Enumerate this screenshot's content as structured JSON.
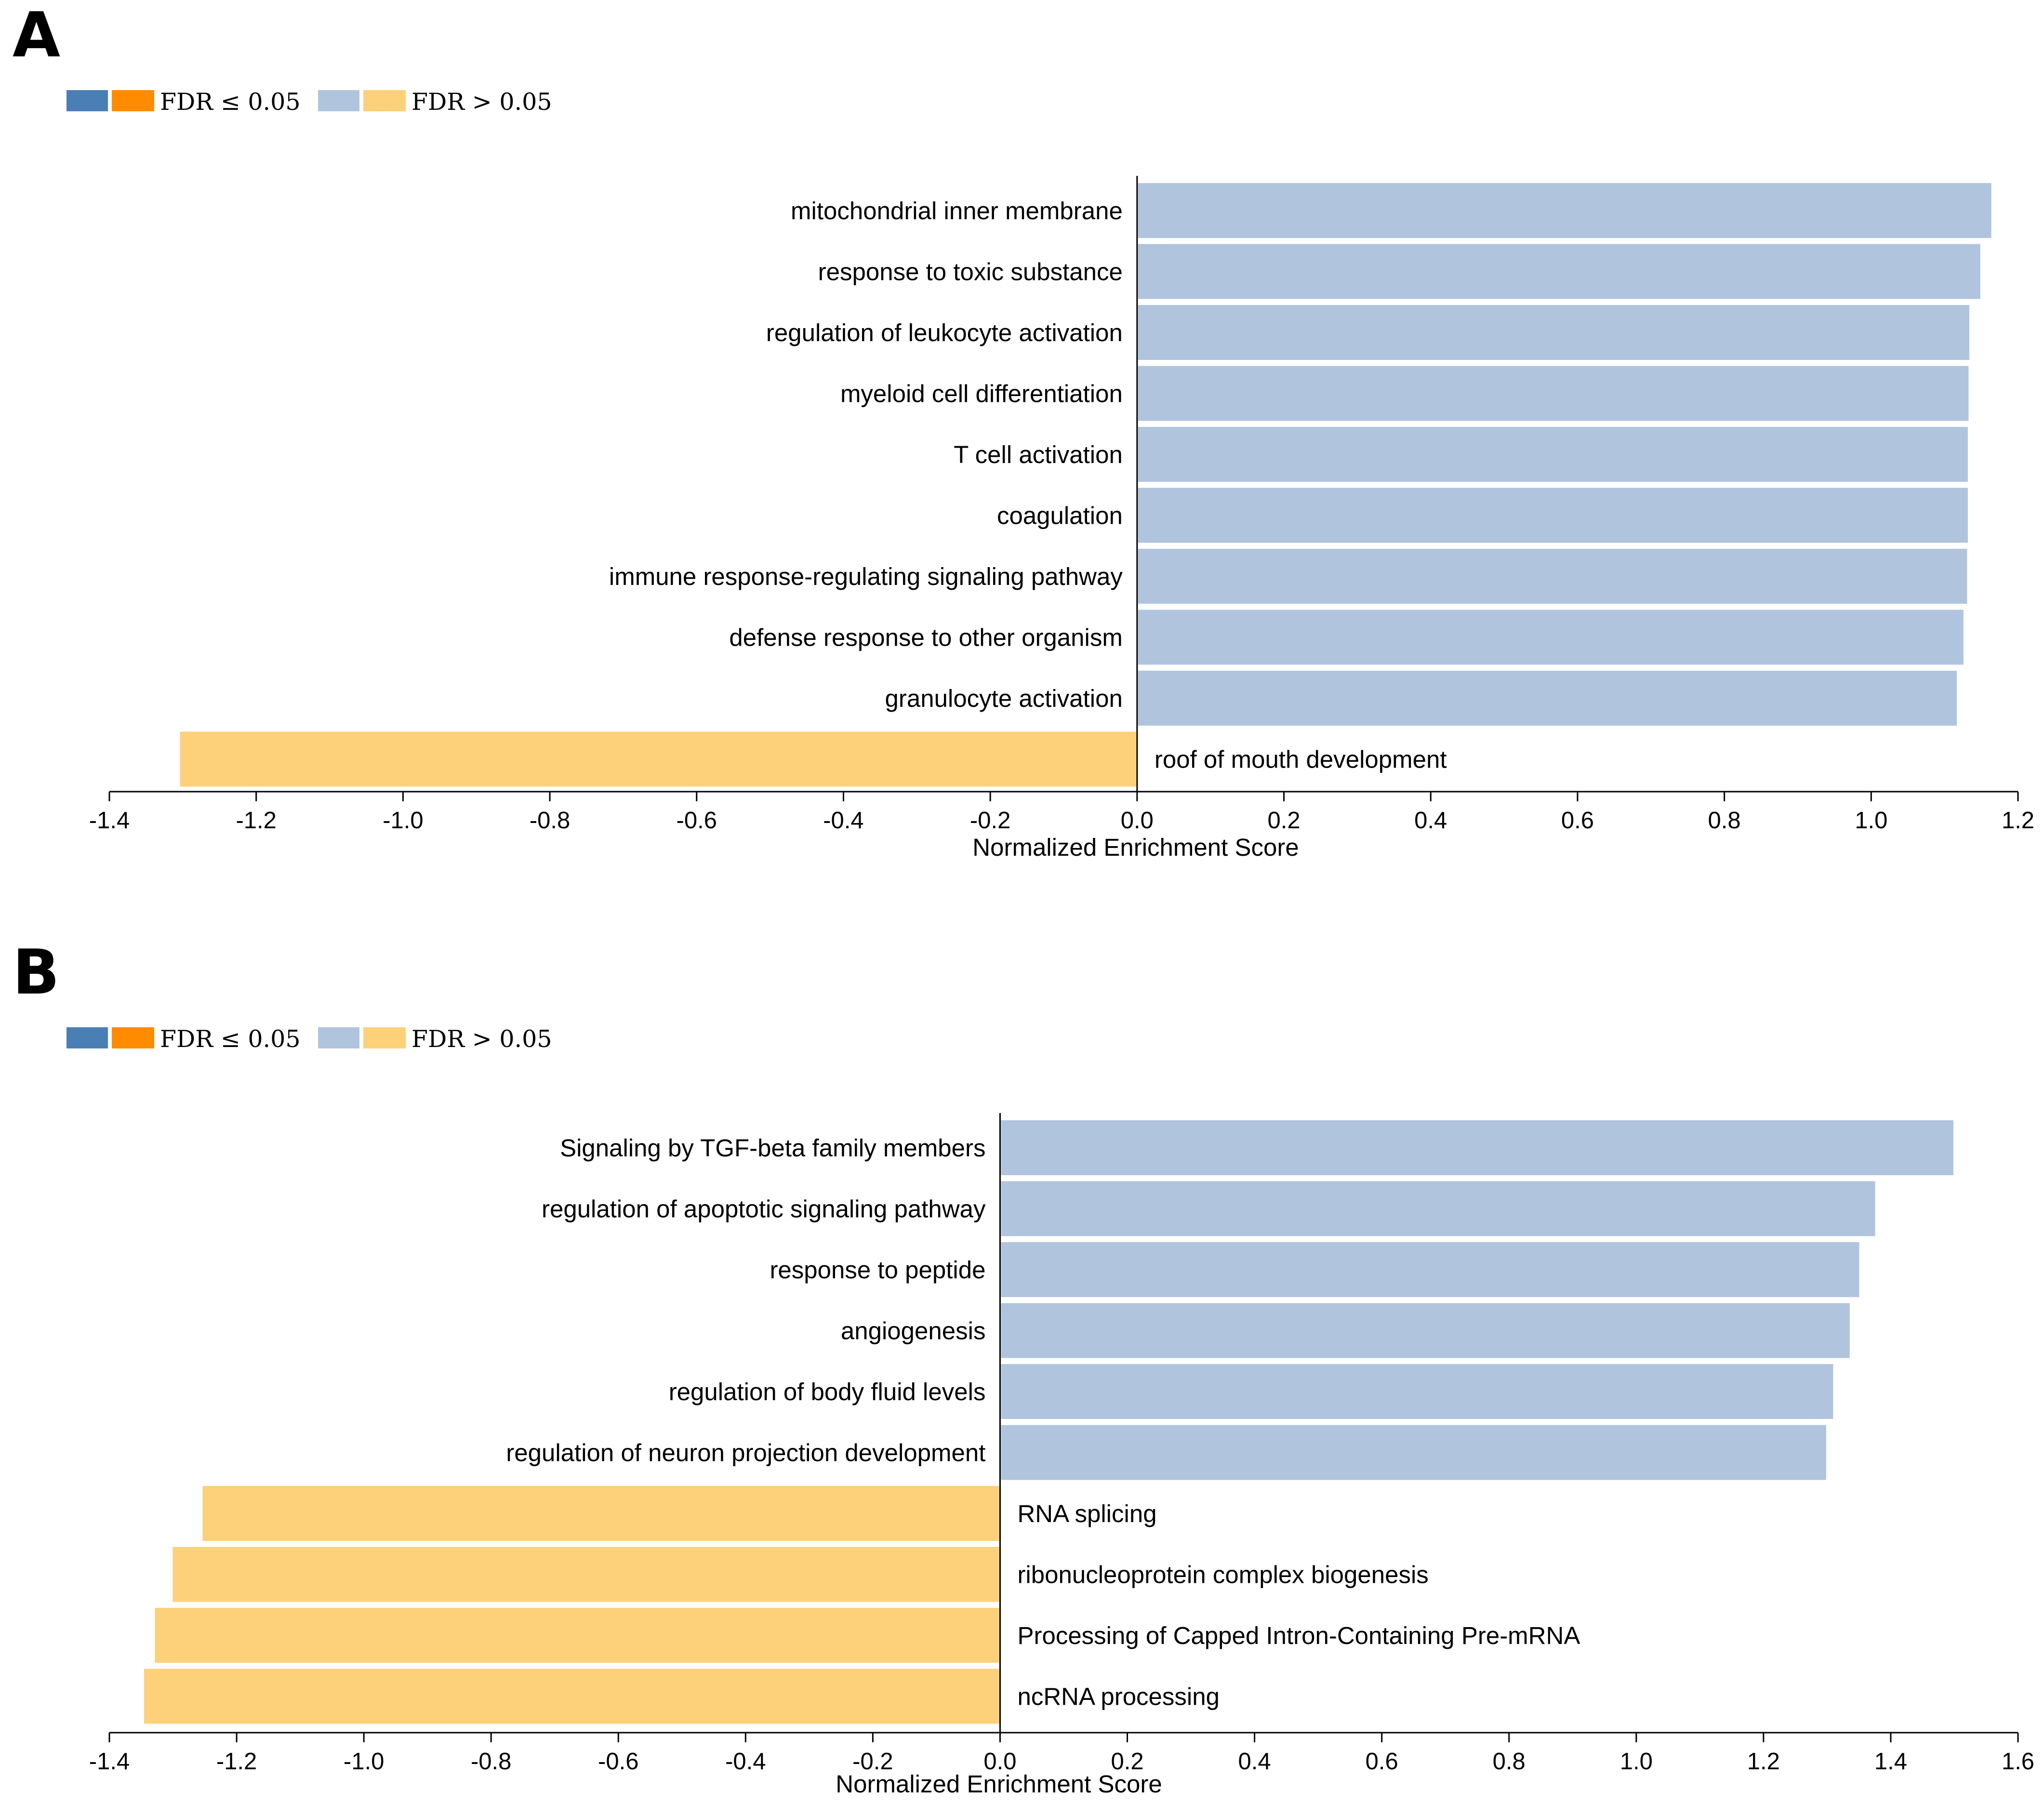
{
  "colors": {
    "sig_pos": "#4a7fb5",
    "sig_neg": "#ff8c00",
    "nonsig_pos": "#b0c4de",
    "nonsig_neg": "#fdd07a"
  },
  "legend": {
    "significant_label": "FDR ≤ 0.05",
    "nonsignificant_label": "FDR > 0.05"
  },
  "chart_data": [
    {
      "type": "bar",
      "orientation": "horizontal",
      "panel": "A",
      "xlabel": "Normalized Enrichment Score",
      "xlim": [
        -1.4,
        1.2
      ],
      "xticks": [
        -1.4,
        -1.2,
        -1.0,
        -0.8,
        -0.6,
        -0.4,
        -0.2,
        0.0,
        0.2,
        0.4,
        0.6,
        0.8,
        1.0,
        1.2
      ],
      "tick_labels": [
        "-1.4",
        "-1.2",
        "-1.0",
        "-0.8",
        "-0.6",
        "-0.4",
        "-0.2",
        "0.0",
        "0.2",
        "0.4",
        "0.6",
        "0.8",
        "1.0",
        "1.2"
      ],
      "categories": [
        "mitochondrial inner membrane",
        "response to toxic substance",
        "regulation of leukocyte activation",
        "myeloid cell differentiation",
        "T cell activation",
        "coagulation",
        "immune response-regulating signaling pathway",
        "defense response to other organism",
        "granulocyte activation",
        "roof of mouth development"
      ],
      "values": [
        1.165,
        1.15,
        1.135,
        1.134,
        1.133,
        1.133,
        1.132,
        1.127,
        1.118,
        -1.305
      ],
      "fdr_significant": [
        false,
        false,
        false,
        false,
        false,
        false,
        false,
        false,
        false,
        false
      ]
    },
    {
      "type": "bar",
      "orientation": "horizontal",
      "panel": "B",
      "xlabel": "Normalized Enrichment Score",
      "xlim": [
        -1.4,
        1.6
      ],
      "xticks": [
        -1.4,
        -1.2,
        -1.0,
        -0.8,
        -0.6,
        -0.4,
        -0.2,
        0.0,
        0.2,
        0.4,
        0.6,
        0.8,
        1.0,
        1.2,
        1.4,
        1.6
      ],
      "tick_labels": [
        "-1.4",
        "-1.2",
        "-1.0",
        "-0.8",
        "-0.6",
        "-0.4",
        "-0.2",
        "0.0",
        "0.2",
        "0.4",
        "0.6",
        "0.8",
        "1.0",
        "1.2",
        "1.4",
        "1.6"
      ],
      "categories": [
        "Signaling by TGF-beta family members",
        "regulation of apoptotic signaling pathway",
        "response to peptide",
        "angiogenesis",
        "regulation of body fluid levels",
        "regulation of neuron projection development",
        "RNA splicing",
        "ribonucleoprotein complex biogenesis",
        "Processing of Capped Intron-Containing Pre-mRNA",
        "ncRNA processing"
      ],
      "values": [
        1.5,
        1.377,
        1.352,
        1.337,
        1.311,
        1.3,
        -1.255,
        -1.302,
        -1.33,
        -1.347
      ],
      "fdr_significant": [
        false,
        false,
        false,
        false,
        false,
        false,
        false,
        false,
        false,
        false
      ]
    }
  ]
}
